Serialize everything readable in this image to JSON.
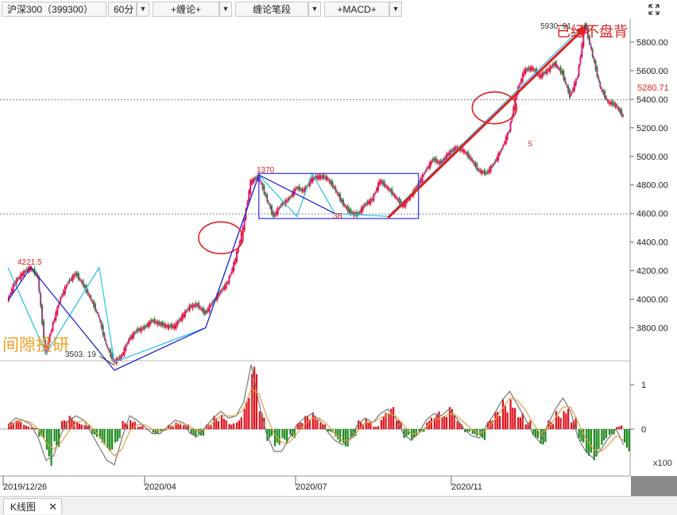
{
  "toolbar": {
    "symbol": "沪深300（399300）",
    "period": "60分",
    "indicator1": "+缠论+",
    "indicator2": "缠论笔段",
    "indicator3": "+MACD+",
    "expand_icon": "expand-arrows-icon"
  },
  "bottom": {
    "tab_label": "K线图",
    "tab_close": "✕"
  },
  "annotations": {
    "headline": "已经不盘背",
    "watermark": "间隙投研",
    "high_label": "5930. 91",
    "low_label": "3503. 19",
    "left_label": "4221.5",
    "peak_1370": "1370",
    "label_3b": "3B",
    "label_s": "S"
  },
  "price_tag": {
    "value": "5280.71",
    "color": "#e02020"
  },
  "colors": {
    "up": "#e0101a",
    "down": "#1a8a1a",
    "stroke": "#e0101a",
    "segment": "#1b1bd0",
    "line2": "#33c4e8"
  },
  "chart_data": [
    {
      "type": "line",
      "title": "",
      "x_ticks": [
        "2019/12/26",
        "2020/04",
        "2020/07",
        "2020/11"
      ],
      "y_ticks": [
        "5800.00",
        "5600.00",
        "5400.00",
        "5200.00",
        "5000.00",
        "4800.00",
        "4600.00",
        "4400.00",
        "4200.00",
        "4000.00",
        "3800.00"
      ],
      "ylim": [
        3580,
        5950
      ],
      "series": [
        {
          "values": [
            3990,
            4120,
            4180,
            4222,
            4160,
            3620,
            3830,
            4010,
            4120,
            4180,
            4100,
            4000,
            3880,
            3680,
            3560,
            3600,
            3720,
            3780,
            3800,
            3850,
            3830,
            3810,
            3810,
            3880,
            3950,
            3960,
            3900,
            3980,
            4050,
            4120,
            4280,
            4500,
            4820,
            4860,
            4720,
            4580,
            4660,
            4700,
            4780,
            4760,
            4840,
            4860,
            4850,
            4780,
            4680,
            4610,
            4590,
            4660,
            4700,
            4830,
            4780,
            4720,
            4650,
            4720,
            4800,
            4900,
            4980,
            4950,
            5020,
            5060,
            5040,
            4980,
            4900,
            4880,
            4950,
            5050,
            5180,
            5450,
            5600,
            5620,
            5560,
            5600,
            5650,
            5580,
            5420,
            5560,
            5930,
            5700,
            5480,
            5380,
            5360,
            5280
          ]
        }
      ],
      "bi_up": [
        [
          0,
          4222
        ],
        [
          5,
          3620
        ],
        [
          12,
          4222
        ],
        [
          14,
          3560
        ],
        [
          26,
          3800
        ],
        [
          33,
          4870
        ],
        [
          38,
          4580
        ],
        [
          40,
          4880
        ],
        [
          43,
          4600
        ],
        [
          50,
          4580
        ],
        [
          76,
          5930
        ]
      ],
      "seg_line": [
        [
          0,
          3990
        ],
        [
          3,
          4222
        ],
        [
          14,
          3503
        ],
        [
          26,
          3800
        ],
        [
          33,
          4870
        ],
        [
          43,
          4600
        ]
      ],
      "zs_box": {
        "x0": 33,
        "x1": 54,
        "ymin": 4565,
        "ymax": 4880
      },
      "red_ellipses": [
        [
          28,
          4430
        ],
        [
          64,
          5340
        ]
      ],
      "arrow": {
        "from": [
          50,
          4570
        ],
        "to": [
          76,
          5930
        ]
      }
    },
    {
      "type": "bar",
      "title": "",
      "y_ticks": [
        "1",
        "0"
      ],
      "scale_label": "x100",
      "ylim": [
        -1.0,
        1.5
      ],
      "values": [
        0.15,
        0.2,
        0.1,
        0.05,
        -0.3,
        -0.9,
        -0.4,
        0.2,
        0.3,
        0.2,
        0.15,
        -0.2,
        -0.35,
        -0.5,
        -0.3,
        0.2,
        0.3,
        0.1,
        0.0,
        -0.1,
        -0.05,
        0.1,
        0.2,
        0.15,
        -0.2,
        -0.15,
        0.1,
        0.3,
        0.4,
        0.2,
        0.3,
        0.7,
        1.4,
        0.4,
        -0.3,
        -0.6,
        -0.4,
        -0.2,
        0.15,
        0.3,
        0.4,
        0.2,
        -0.1,
        -0.3,
        -0.4,
        -0.2,
        0.2,
        0.3,
        0.1,
        0.4,
        0.5,
        0.2,
        -0.2,
        -0.3,
        -0.1,
        0.3,
        0.4,
        0.3,
        0.5,
        0.2,
        -0.1,
        -0.2,
        -0.25,
        0.2,
        0.4,
        0.7,
        0.9,
        0.5,
        0.2,
        -0.2,
        -0.35,
        0.2,
        0.5,
        0.7,
        0.3,
        -0.3,
        -0.6,
        -0.7,
        -0.4,
        -0.2,
        0.1,
        -0.5
      ],
      "dif": [
        0.1,
        0.25,
        0.2,
        0.1,
        -0.2,
        -0.7,
        -0.6,
        -0.1,
        0.2,
        0.3,
        0.2,
        -0.1,
        -0.4,
        -0.7,
        -0.8,
        -0.2,
        0.3,
        0.2,
        0.05,
        -0.1,
        -0.1,
        0.05,
        0.2,
        0.15,
        -0.1,
        -0.15,
        0.05,
        0.25,
        0.4,
        0.25,
        0.3,
        0.6,
        1.45,
        0.6,
        -0.1,
        -0.5,
        -0.5,
        -0.2,
        0.1,
        0.25,
        0.35,
        0.2,
        -0.05,
        -0.25,
        -0.35,
        -0.2,
        0.1,
        0.25,
        0.15,
        0.35,
        0.45,
        0.25,
        -0.1,
        -0.25,
        -0.1,
        0.2,
        0.35,
        0.3,
        0.45,
        0.25,
        0.0,
        -0.15,
        -0.2,
        0.1,
        0.35,
        0.65,
        0.85,
        0.55,
        0.25,
        -0.1,
        -0.3,
        0.1,
        0.45,
        0.7,
        0.4,
        -0.2,
        -0.5,
        -0.65,
        -0.45,
        -0.2,
        0.0,
        -0.35
      ],
      "dea": [
        0.05,
        0.15,
        0.2,
        0.15,
        0.0,
        -0.3,
        -0.45,
        -0.3,
        -0.05,
        0.15,
        0.2,
        0.05,
        -0.15,
        -0.4,
        -0.6,
        -0.45,
        -0.05,
        0.1,
        0.1,
        0.0,
        -0.05,
        0.0,
        0.1,
        0.15,
        0.05,
        -0.05,
        0.0,
        0.15,
        0.3,
        0.3,
        0.3,
        0.45,
        0.9,
        0.8,
        0.3,
        -0.1,
        -0.3,
        -0.3,
        -0.1,
        0.1,
        0.25,
        0.25,
        0.1,
        -0.1,
        -0.25,
        -0.25,
        -0.05,
        0.15,
        0.15,
        0.25,
        0.35,
        0.3,
        0.1,
        -0.1,
        -0.1,
        0.05,
        0.2,
        0.25,
        0.35,
        0.3,
        0.15,
        0.0,
        -0.1,
        0.0,
        0.2,
        0.45,
        0.7,
        0.65,
        0.45,
        0.15,
        -0.1,
        0.0,
        0.25,
        0.5,
        0.5,
        0.15,
        -0.2,
        -0.45,
        -0.5,
        -0.35,
        -0.15,
        -0.25
      ]
    }
  ]
}
